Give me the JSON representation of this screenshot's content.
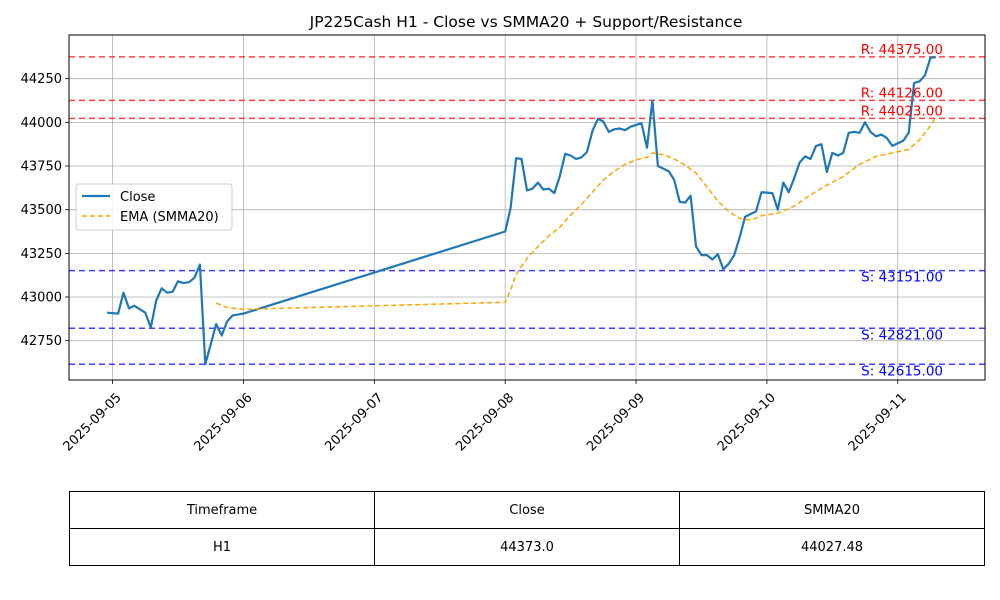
{
  "chart_data": {
    "type": "line",
    "title": "JP225Cash H1 - Close vs SMMA20 + Support/Resistance",
    "xlabel": "",
    "ylabel": "",
    "x_range": [
      "2025-09-04 16:00",
      "2025-09-11 16:00"
    ],
    "ylim": [
      42525,
      44500
    ],
    "grid": true,
    "legend_position": "center-left",
    "x_ticks": [
      "2025-09-05",
      "2025-09-06",
      "2025-09-07",
      "2025-09-08",
      "2025-09-09",
      "2025-09-10",
      "2025-09-11"
    ],
    "y_ticks": [
      42750,
      43000,
      43250,
      43500,
      43750,
      44000,
      44250
    ],
    "y_tick_labels": [
      "42750",
      "43000",
      "43250",
      "43500",
      "43750",
      "44000",
      "44250"
    ],
    "series": [
      {
        "name": "Close",
        "color": "#1f77b4",
        "style": "solid",
        "points": [
          [
            "2025-09-04 23:00",
            42910
          ],
          [
            "2025-09-05 01:00",
            42905
          ],
          [
            "2025-09-05 02:00",
            43025
          ],
          [
            "2025-09-05 03:00",
            42935
          ],
          [
            "2025-09-05 04:00",
            42950
          ],
          [
            "2025-09-05 06:00",
            42910
          ],
          [
            "2025-09-05 07:00",
            42825
          ],
          [
            "2025-09-05 08:00",
            42980
          ],
          [
            "2025-09-05 09:00",
            43050
          ],
          [
            "2025-09-05 10:00",
            43025
          ],
          [
            "2025-09-05 11:00",
            43030
          ],
          [
            "2025-09-05 12:00",
            43090
          ],
          [
            "2025-09-05 13:00",
            43080
          ],
          [
            "2025-09-05 14:00",
            43085
          ],
          [
            "2025-09-05 15:00",
            43110
          ],
          [
            "2025-09-05 16:00",
            43185
          ],
          [
            "2025-09-05 17:00",
            42615
          ],
          [
            "2025-09-05 19:00",
            42845
          ],
          [
            "2025-09-05 20:00",
            42780
          ],
          [
            "2025-09-05 21:00",
            42860
          ],
          [
            "2025-09-05 22:00",
            42895
          ],
          [
            "2025-09-06 00:00",
            42905
          ],
          [
            "2025-09-08 00:00",
            43375
          ],
          [
            "2025-09-08 01:00",
            43510
          ],
          [
            "2025-09-08 02:00",
            43795
          ],
          [
            "2025-09-08 03:00",
            43790
          ],
          [
            "2025-09-08 04:00",
            43610
          ],
          [
            "2025-09-08 05:00",
            43620
          ],
          [
            "2025-09-08 06:00",
            43655
          ],
          [
            "2025-09-08 07:00",
            43615
          ],
          [
            "2025-09-08 08:00",
            43620
          ],
          [
            "2025-09-08 09:00",
            43595
          ],
          [
            "2025-09-08 10:00",
            43690
          ],
          [
            "2025-09-08 11:00",
            43820
          ],
          [
            "2025-09-08 12:00",
            43810
          ],
          [
            "2025-09-08 13:00",
            43790
          ],
          [
            "2025-09-08 14:00",
            43800
          ],
          [
            "2025-09-08 15:00",
            43830
          ],
          [
            "2025-09-08 16:00",
            43950
          ],
          [
            "2025-09-08 17:00",
            44020
          ],
          [
            "2025-09-08 18:00",
            44005
          ],
          [
            "2025-09-08 19:00",
            43945
          ],
          [
            "2025-09-08 20:00",
            43960
          ],
          [
            "2025-09-08 21:00",
            43965
          ],
          [
            "2025-09-08 22:00",
            43955
          ],
          [
            "2025-09-08 23:00",
            43975
          ],
          [
            "2025-09-09 01:00",
            43995
          ],
          [
            "2025-09-09 02:00",
            43855
          ],
          [
            "2025-09-09 03:00",
            44125
          ],
          [
            "2025-09-09 04:00",
            43750
          ],
          [
            "2025-09-09 05:00",
            43735
          ],
          [
            "2025-09-09 06:00",
            43720
          ],
          [
            "2025-09-09 07:00",
            43670
          ],
          [
            "2025-09-09 08:00",
            43545
          ],
          [
            "2025-09-09 09:00",
            43540
          ],
          [
            "2025-09-09 10:00",
            43580
          ],
          [
            "2025-09-09 11:00",
            43290
          ],
          [
            "2025-09-09 12:00",
            43240
          ],
          [
            "2025-09-09 13:00",
            43240
          ],
          [
            "2025-09-09 14:00",
            43215
          ],
          [
            "2025-09-09 15:00",
            43245
          ],
          [
            "2025-09-09 16:00",
            43160
          ],
          [
            "2025-09-09 17:00",
            43190
          ],
          [
            "2025-09-09 18:00",
            43240
          ],
          [
            "2025-09-09 19:00",
            43340
          ],
          [
            "2025-09-09 20:00",
            43460
          ],
          [
            "2025-09-09 22:00",
            43490
          ],
          [
            "2025-09-09 23:00",
            43600
          ],
          [
            "2025-09-10 01:00",
            43595
          ],
          [
            "2025-09-10 02:00",
            43500
          ],
          [
            "2025-09-10 03:00",
            43655
          ],
          [
            "2025-09-10 04:00",
            43600
          ],
          [
            "2025-09-10 05:00",
            43680
          ],
          [
            "2025-09-10 06:00",
            43770
          ],
          [
            "2025-09-10 07:00",
            43805
          ],
          [
            "2025-09-10 08:00",
            43790
          ],
          [
            "2025-09-10 09:00",
            43865
          ],
          [
            "2025-09-10 10:00",
            43875
          ],
          [
            "2025-09-10 11:00",
            43715
          ],
          [
            "2025-09-10 12:00",
            43825
          ],
          [
            "2025-09-10 13:00",
            43810
          ],
          [
            "2025-09-10 14:00",
            43825
          ],
          [
            "2025-09-10 15:00",
            43940
          ],
          [
            "2025-09-10 16:00",
            43945
          ],
          [
            "2025-09-10 17:00",
            43940
          ],
          [
            "2025-09-10 18:00",
            44000
          ],
          [
            "2025-09-10 19:00",
            43945
          ],
          [
            "2025-09-10 20:00",
            43920
          ],
          [
            "2025-09-10 21:00",
            43930
          ],
          [
            "2025-09-10 22:00",
            43910
          ],
          [
            "2025-09-10 23:00",
            43865
          ],
          [
            "2025-09-11 01:00",
            43895
          ],
          [
            "2025-09-11 02:00",
            43940
          ],
          [
            "2025-09-11 03:00",
            44225
          ],
          [
            "2025-09-11 04:00",
            44235
          ],
          [
            "2025-09-11 05:00",
            44270
          ],
          [
            "2025-09-11 06:00",
            44370
          ],
          [
            "2025-09-11 07:00",
            44373
          ]
        ]
      },
      {
        "name": "EMA (SMMA20)",
        "color": "#ffa500",
        "style": "dashed",
        "points": [
          [
            "2025-09-05 19:00",
            42965
          ],
          [
            "2025-09-05 21:00",
            42940
          ],
          [
            "2025-09-06 00:00",
            42930
          ],
          [
            "2025-09-08 00:00",
            42970
          ],
          [
            "2025-09-08 01:00",
            43040
          ],
          [
            "2025-09-08 02:00",
            43130
          ],
          [
            "2025-09-08 04:00",
            43220
          ],
          [
            "2025-09-08 06:00",
            43290
          ],
          [
            "2025-09-08 08:00",
            43350
          ],
          [
            "2025-09-08 10:00",
            43400
          ],
          [
            "2025-09-08 12:00",
            43470
          ],
          [
            "2025-09-08 14:00",
            43530
          ],
          [
            "2025-09-08 16:00",
            43600
          ],
          [
            "2025-09-08 18:00",
            43670
          ],
          [
            "2025-09-08 20:00",
            43720
          ],
          [
            "2025-09-08 22:00",
            43760
          ],
          [
            "2025-09-09 00:00",
            43785
          ],
          [
            "2025-09-09 02:00",
            43800
          ],
          [
            "2025-09-09 03:00",
            43825
          ],
          [
            "2025-09-09 05:00",
            43815
          ],
          [
            "2025-09-09 07:00",
            43790
          ],
          [
            "2025-09-09 09:00",
            43755
          ],
          [
            "2025-09-09 11:00",
            43710
          ],
          [
            "2025-09-09 13:00",
            43630
          ],
          [
            "2025-09-09 15:00",
            43550
          ],
          [
            "2025-09-09 17:00",
            43490
          ],
          [
            "2025-09-09 19:00",
            43450
          ],
          [
            "2025-09-09 21:00",
            43440
          ],
          [
            "2025-09-09 23:00",
            43465
          ],
          [
            "2025-09-10 02:00",
            43480
          ],
          [
            "2025-09-10 05:00",
            43520
          ],
          [
            "2025-09-10 08:00",
            43585
          ],
          [
            "2025-09-10 11:00",
            43640
          ],
          [
            "2025-09-10 14:00",
            43690
          ],
          [
            "2025-09-10 17:00",
            43760
          ],
          [
            "2025-09-10 20:00",
            43805
          ],
          [
            "2025-09-10 23:00",
            43825
          ],
          [
            "2025-09-11 02:00",
            43845
          ],
          [
            "2025-09-11 04:00",
            43900
          ],
          [
            "2025-09-11 06:00",
            43980
          ],
          [
            "2025-09-11 07:00",
            44027.48
          ]
        ]
      }
    ],
    "levels": [
      {
        "kind": "resistance",
        "value": 44375.0,
        "label": "R: 44375.00",
        "color": "#ff0000"
      },
      {
        "kind": "resistance",
        "value": 44126.0,
        "label": "R: 44126.00",
        "color": "#ff0000"
      },
      {
        "kind": "resistance",
        "value": 44023.0,
        "label": "R: 44023.00",
        "color": "#ff0000"
      },
      {
        "kind": "support",
        "value": 43151.0,
        "label": "S: 43151.00",
        "color": "#0000ff"
      },
      {
        "kind": "support",
        "value": 42821.0,
        "label": "S: 42821.00",
        "color": "#0000ff"
      },
      {
        "kind": "support",
        "value": 42615.0,
        "label": "S: 42615.00",
        "color": "#0000ff"
      }
    ]
  },
  "table": {
    "headers": [
      "Timeframe",
      "Close",
      "SMMA20"
    ],
    "rows": [
      [
        "H1",
        "44373.0",
        "44027.48"
      ]
    ]
  }
}
